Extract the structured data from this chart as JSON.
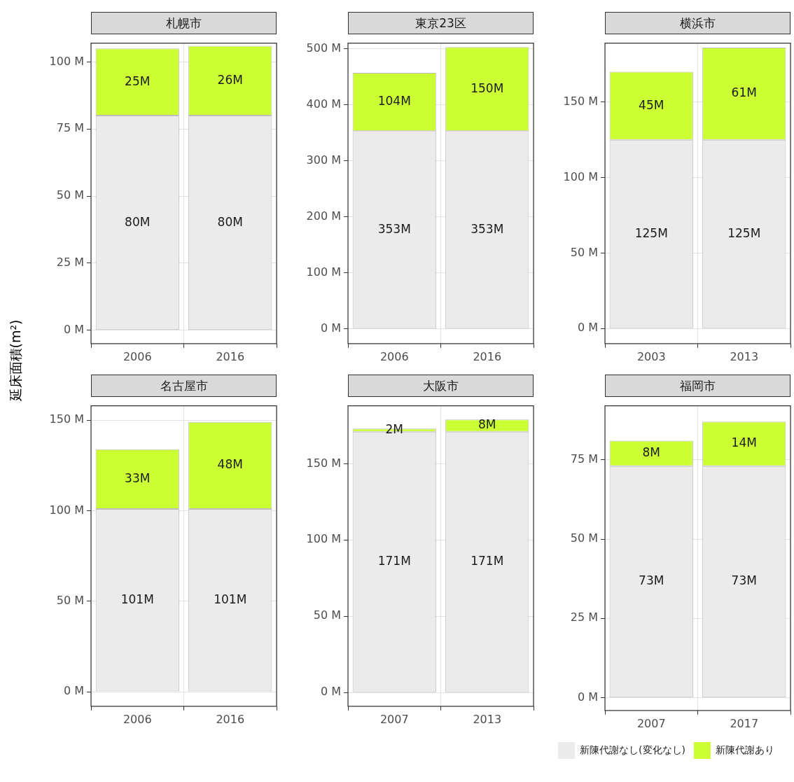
{
  "chart_data": [
    {
      "type": "bar",
      "title": "札幌市",
      "ylabel": "延床面積(m²)",
      "stacked": true,
      "grid": true,
      "legend": false,
      "categories": [
        "2006",
        "2016"
      ],
      "ylim": [
        -5,
        107
      ],
      "yticks": [
        {
          "value": 0,
          "label": "0 M"
        },
        {
          "value": 25,
          "label": "25 M"
        },
        {
          "value": 50,
          "label": "50 M"
        },
        {
          "value": 75,
          "label": "75 M"
        },
        {
          "value": 100,
          "label": "100 M"
        }
      ],
      "series": [
        {
          "color": "#ebebeb",
          "values": [
            80,
            80
          ],
          "value_labels": [
            "80M",
            "80M"
          ]
        },
        {
          "color": "#ccff33",
          "values": [
            25,
            26
          ],
          "value_labels": [
            "25M",
            "26M"
          ]
        }
      ]
    },
    {
      "type": "bar",
      "title": "東京23区",
      "stacked": true,
      "grid": true,
      "legend": false,
      "categories": [
        "2006",
        "2016"
      ],
      "ylim": [
        -26,
        510
      ],
      "yticks": [
        {
          "value": 0,
          "label": "0 M"
        },
        {
          "value": 100,
          "label": "100 M"
        },
        {
          "value": 200,
          "label": "200 M"
        },
        {
          "value": 300,
          "label": "300 M"
        },
        {
          "value": 400,
          "label": "400 M"
        },
        {
          "value": 500,
          "label": "500 M"
        }
      ],
      "series": [
        {
          "color": "#ebebeb",
          "values": [
            353,
            353
          ],
          "value_labels": [
            "353M",
            "353M"
          ]
        },
        {
          "color": "#ccff33",
          "values": [
            104,
            150
          ],
          "value_labels": [
            "104M",
            "150M"
          ]
        }
      ]
    },
    {
      "type": "bar",
      "title": "横浜市",
      "stacked": true,
      "grid": true,
      "legend": false,
      "categories": [
        "2003",
        "2013"
      ],
      "ylim": [
        -10,
        189
      ],
      "yticks": [
        {
          "value": 0,
          "label": "0 M"
        },
        {
          "value": 50,
          "label": "50 M"
        },
        {
          "value": 100,
          "label": "100 M"
        },
        {
          "value": 150,
          "label": "150 M"
        }
      ],
      "series": [
        {
          "color": "#ebebeb",
          "values": [
            125,
            125
          ],
          "value_labels": [
            "125M",
            "125M"
          ]
        },
        {
          "color": "#ccff33",
          "values": [
            45,
            61
          ],
          "value_labels": [
            "45M",
            "61M"
          ]
        }
      ]
    },
    {
      "type": "bar",
      "title": "名古屋市",
      "stacked": true,
      "grid": true,
      "legend": false,
      "categories": [
        "2006",
        "2016"
      ],
      "ylim": [
        -8,
        158
      ],
      "yticks": [
        {
          "value": 0,
          "label": "0 M"
        },
        {
          "value": 50,
          "label": "50 M"
        },
        {
          "value": 100,
          "label": "100 M"
        },
        {
          "value": 150,
          "label": "150 M"
        }
      ],
      "series": [
        {
          "color": "#ebebeb",
          "values": [
            101,
            101
          ],
          "value_labels": [
            "101M",
            "101M"
          ]
        },
        {
          "color": "#ccff33",
          "values": [
            33,
            48
          ],
          "value_labels": [
            "33M",
            "48M"
          ]
        }
      ]
    },
    {
      "type": "bar",
      "title": "大阪市",
      "stacked": true,
      "grid": true,
      "legend": false,
      "categories": [
        "2007",
        "2013"
      ],
      "ylim": [
        -9,
        188
      ],
      "yticks": [
        {
          "value": 0,
          "label": "0 M"
        },
        {
          "value": 50,
          "label": "50 M"
        },
        {
          "value": 100,
          "label": "100 M"
        },
        {
          "value": 150,
          "label": "150 M"
        }
      ],
      "series": [
        {
          "color": "#ebebeb",
          "values": [
            171,
            171
          ],
          "value_labels": [
            "171M",
            "171M"
          ]
        },
        {
          "color": "#ccff33",
          "values": [
            2,
            8
          ],
          "value_labels": [
            "2M",
            "8M"
          ]
        }
      ]
    },
    {
      "type": "bar",
      "title": "福岡市",
      "stacked": true,
      "grid": true,
      "legend": "bottom",
      "categories": [
        "2007",
        "2017"
      ],
      "ylim": [
        -4,
        92
      ],
      "yticks": [
        {
          "value": 0,
          "label": "0 M"
        },
        {
          "value": 25,
          "label": "25 M"
        },
        {
          "value": 50,
          "label": "50 M"
        },
        {
          "value": 75,
          "label": "75 M"
        }
      ],
      "series": [
        {
          "name": "新陳代謝なし(変化なし)",
          "color": "#ebebeb",
          "values": [
            73,
            73
          ],
          "value_labels": [
            "73M",
            "73M"
          ]
        },
        {
          "name": "新陳代謝あり",
          "color": "#ccff33",
          "values": [
            8,
            14
          ],
          "value_labels": [
            "8M",
            "14M"
          ]
        }
      ]
    }
  ]
}
